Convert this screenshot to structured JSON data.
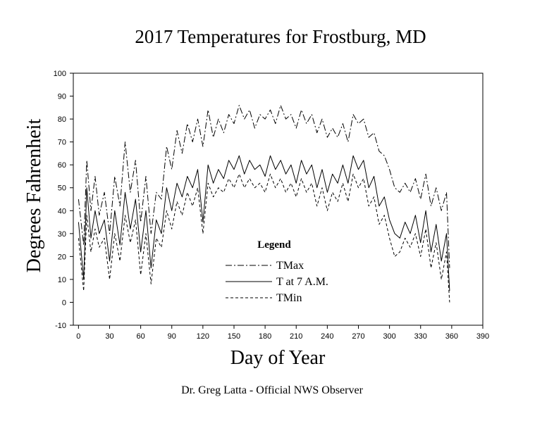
{
  "chart_data": {
    "type": "line",
    "title": "2017 Temperatures for Frostburg, MD",
    "xlabel": "Day of Year",
    "ylabel": "Degrees Fahrenheit",
    "footer": "Dr. Greg Latta - Official NWS Observer",
    "xlim": [
      -5,
      390
    ],
    "ylim": [
      -10,
      100
    ],
    "x_ticks": [
      0,
      30,
      60,
      90,
      120,
      150,
      180,
      210,
      240,
      270,
      300,
      330,
      360,
      390
    ],
    "y_ticks": [
      -10,
      0,
      10,
      20,
      30,
      40,
      50,
      60,
      70,
      80,
      90,
      100
    ],
    "grid": false,
    "legend": {
      "title": "Legend",
      "placement": "center",
      "entries": [
        "TMax",
        "T at 7 A.M.",
        "TMin"
      ]
    },
    "series": [
      {
        "name": "TMax",
        "style": "dash-dot",
        "x": [
          0,
          5,
          8,
          12,
          16,
          20,
          25,
          30,
          35,
          40,
          45,
          50,
          55,
          60,
          65,
          70,
          75,
          80,
          85,
          90,
          95,
          100,
          105,
          110,
          115,
          120,
          125,
          130,
          135,
          140,
          145,
          150,
          155,
          160,
          165,
          170,
          175,
          180,
          185,
          190,
          195,
          200,
          205,
          210,
          215,
          220,
          225,
          230,
          235,
          240,
          245,
          250,
          255,
          260,
          265,
          270,
          275,
          280,
          285,
          290,
          295,
          300,
          305,
          310,
          315,
          320,
          325,
          330,
          335,
          340,
          345,
          350,
          355,
          358
        ],
        "values": [
          45,
          25,
          62,
          40,
          55,
          38,
          48,
          30,
          55,
          42,
          70,
          48,
          62,
          35,
          55,
          30,
          48,
          45,
          68,
          58,
          75,
          65,
          78,
          70,
          80,
          68,
          84,
          72,
          80,
          74,
          82,
          78,
          86,
          80,
          84,
          76,
          82,
          80,
          84,
          78,
          86,
          80,
          82,
          76,
          84,
          78,
          82,
          74,
          80,
          72,
          76,
          72,
          78,
          70,
          82,
          78,
          80,
          72,
          74,
          66,
          64,
          58,
          50,
          48,
          52,
          48,
          54,
          45,
          56,
          42,
          50,
          40,
          48,
          15
        ]
      },
      {
        "name": "T at 7 A.M.",
        "style": "solid",
        "x": [
          0,
          5,
          8,
          12,
          16,
          20,
          25,
          30,
          35,
          40,
          45,
          50,
          55,
          60,
          65,
          70,
          75,
          80,
          85,
          90,
          95,
          100,
          105,
          110,
          115,
          120,
          125,
          130,
          135,
          140,
          145,
          150,
          155,
          160,
          165,
          170,
          175,
          180,
          185,
          190,
          195,
          200,
          205,
          210,
          215,
          220,
          225,
          230,
          235,
          240,
          245,
          250,
          255,
          260,
          265,
          270,
          275,
          280,
          285,
          290,
          295,
          300,
          305,
          310,
          315,
          320,
          325,
          330,
          335,
          340,
          345,
          350,
          355,
          358
        ],
        "values": [
          35,
          10,
          50,
          28,
          40,
          30,
          36,
          18,
          40,
          25,
          48,
          32,
          45,
          22,
          40,
          15,
          36,
          30,
          50,
          40,
          52,
          46,
          55,
          50,
          58,
          35,
          60,
          52,
          58,
          54,
          62,
          58,
          64,
          56,
          62,
          58,
          60,
          55,
          64,
          58,
          62,
          56,
          60,
          52,
          62,
          56,
          60,
          50,
          58,
          48,
          56,
          52,
          60,
          52,
          64,
          58,
          62,
          50,
          55,
          42,
          46,
          36,
          30,
          28,
          35,
          30,
          38,
          26,
          40,
          22,
          34,
          18,
          30,
          5
        ]
      },
      {
        "name": "TMin",
        "style": "dashed",
        "x": [
          0,
          5,
          8,
          12,
          16,
          20,
          25,
          30,
          35,
          40,
          45,
          50,
          55,
          60,
          65,
          70,
          75,
          80,
          85,
          90,
          95,
          100,
          105,
          110,
          115,
          120,
          125,
          130,
          135,
          140,
          145,
          150,
          155,
          160,
          165,
          170,
          175,
          180,
          185,
          190,
          195,
          200,
          205,
          210,
          215,
          220,
          225,
          230,
          235,
          240,
          245,
          250,
          255,
          260,
          265,
          270,
          275,
          280,
          285,
          290,
          295,
          300,
          305,
          310,
          315,
          320,
          325,
          330,
          335,
          340,
          345,
          350,
          355,
          358
        ],
        "values": [
          28,
          5,
          38,
          22,
          32,
          24,
          28,
          10,
          30,
          18,
          38,
          26,
          36,
          12,
          30,
          8,
          28,
          24,
          40,
          32,
          44,
          38,
          48,
          42,
          50,
          30,
          52,
          46,
          50,
          48,
          54,
          50,
          56,
          50,
          54,
          50,
          52,
          48,
          56,
          50,
          54,
          48,
          52,
          46,
          54,
          48,
          52,
          42,
          50,
          40,
          48,
          44,
          52,
          44,
          56,
          50,
          54,
          42,
          46,
          34,
          38,
          28,
          20,
          22,
          28,
          24,
          30,
          20,
          32,
          15,
          26,
          10,
          22,
          0
        ]
      }
    ]
  }
}
